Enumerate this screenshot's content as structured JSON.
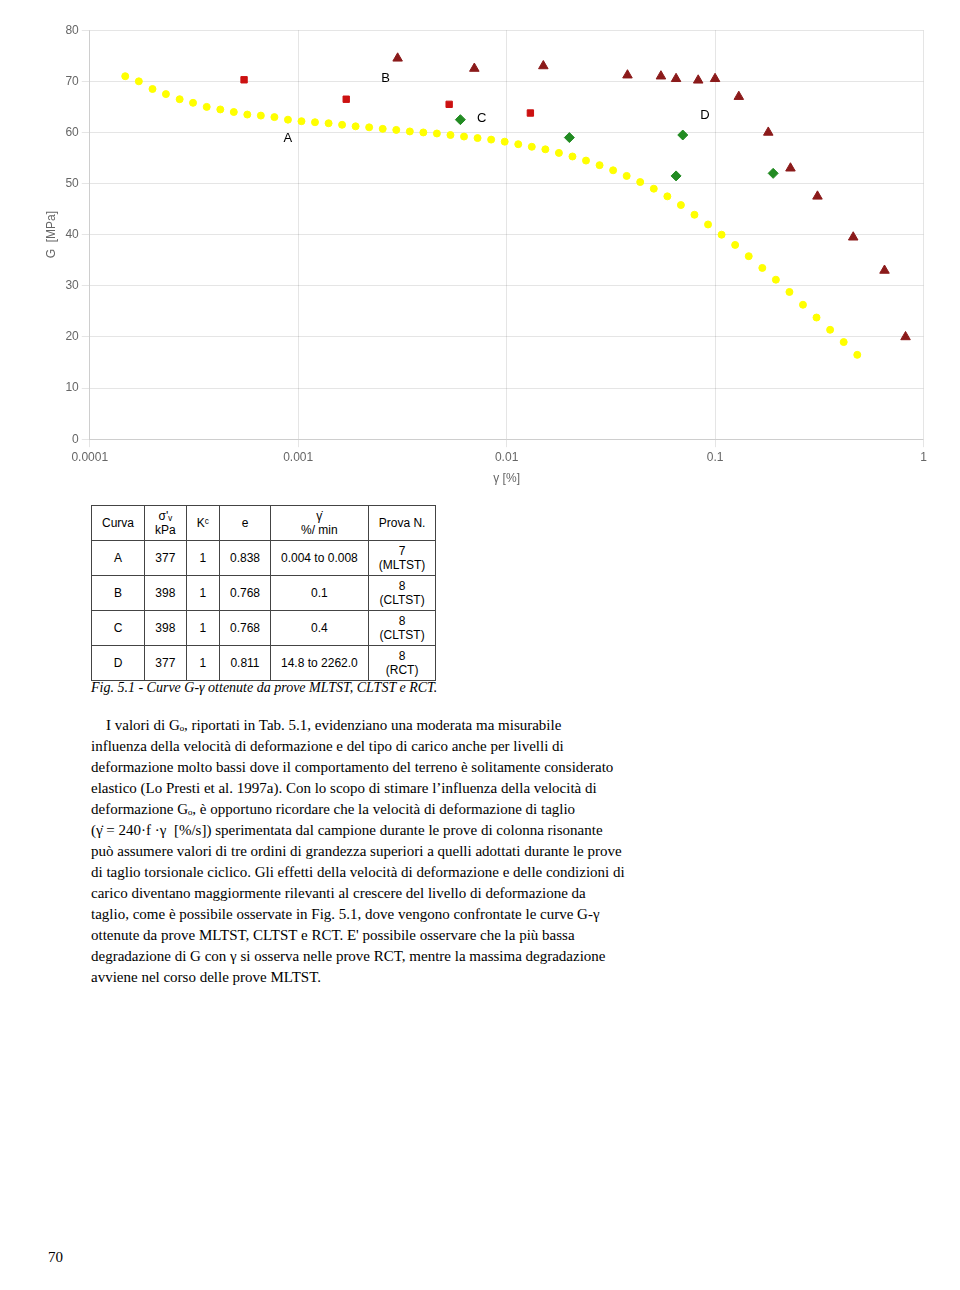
{
  "chart_data": {
    "type": "scatter",
    "log": "x",
    "grid": true,
    "xlabel": "γ [%]",
    "ylabel": "G  [MPa]",
    "xlim": [
      0.0001,
      1
    ],
    "ylim": [
      0,
      80
    ],
    "xticks": [
      0.0001,
      0.001,
      0.01,
      0.1,
      1
    ],
    "yticks": [
      0,
      10,
      20,
      30,
      40,
      50,
      60,
      70,
      80
    ],
    "series": [
      {
        "color": "#ffff00",
        "marker": "circle",
        "x": [
          0.000148,
          0.000172,
          0.0002,
          0.000232,
          0.00027,
          0.000313,
          0.000364,
          0.000423,
          0.000491,
          0.00057,
          0.000662,
          0.000769,
          0.000893,
          0.001037,
          0.001204,
          0.001399,
          0.001624,
          0.001886,
          0.00219,
          0.002544,
          0.002955,
          0.003432,
          0.003985,
          0.004629,
          0.005377,
          0.006246,
          0.007255,
          0.008428,
          0.009789,
          0.01137,
          0.013206,
          0.015339,
          0.017817,
          0.020694,
          0.024035,
          0.027921,
          0.032428,
          0.037665,
          0.043745,
          0.050821,
          0.059037,
          0.068579,
          0.079663,
          0.092533,
          0.107479,
          0.124846,
          0.145043,
          0.168538,
          0.195798,
          0.227426,
          0.264082,
          0.306727,
          0.356461,
          0.414121,
          0.48114
        ],
        "values": [
          71.0,
          70.0,
          68.5,
          67.5,
          66.5,
          65.8,
          65.0,
          64.5,
          64.0,
          63.5,
          63.3,
          63.0,
          62.5,
          62.2,
          62.0,
          61.8,
          61.5,
          61.2,
          61.0,
          60.7,
          60.5,
          60.2,
          60.0,
          59.8,
          59.5,
          59.2,
          58.9,
          58.6,
          58.2,
          57.7,
          57.2,
          56.7,
          56.0,
          55.3,
          54.5,
          53.6,
          52.6,
          51.5,
          50.3,
          49.0,
          47.5,
          45.8,
          43.9,
          42.0,
          40.0,
          38.0,
          35.8,
          33.5,
          31.2,
          28.8,
          26.3,
          23.8,
          21.4,
          19.0,
          16.5
        ]
      },
      {
        "color": "#cc1111",
        "marker": "square",
        "x": [
          0.00055,
          0.0017,
          0.0053,
          0.013
        ],
        "values": [
          70.3,
          66.5,
          65.5,
          63.8
        ]
      },
      {
        "color": "#228B22",
        "marker": "diamond",
        "x": [
          0.006,
          0.02,
          0.065
        ],
        "values": [
          62.5,
          59.0,
          51.5
        ]
      },
      {
        "color": "#228B22",
        "marker": "diamond",
        "x": [
          0.07,
          0.19
        ],
        "values": [
          59.5,
          52.0
        ]
      },
      {
        "color": "#8B1A1A",
        "marker": "triangle",
        "x": [
          0.003,
          0.007,
          0.015,
          0.038,
          0.055,
          0.065,
          0.083,
          0.1,
          0.13,
          0.18,
          0.23,
          0.31,
          0.46,
          0.65,
          0.82
        ],
        "values": [
          74.5,
          72.5,
          73.0,
          71.2,
          71.0,
          70.5,
          70.2,
          70.5,
          67.0,
          60.0,
          53.0,
          47.5,
          39.5,
          33.0,
          20.0
        ]
      }
    ],
    "annotations": [
      {
        "text": "A",
        "x": 0.00085,
        "y": 57.5
      },
      {
        "text": "B",
        "x": 0.0025,
        "y": 69.2
      },
      {
        "text": "C",
        "x": 0.0072,
        "y": 61.5
      },
      {
        "text": "D",
        "x": 0.085,
        "y": 62.0
      }
    ]
  },
  "table": {
    "columns": [
      "Curva",
      "σ'ᵥ\nkPa",
      "Kᶜ",
      "e",
      "γ̇\n%/ min",
      "Prova N."
    ],
    "rows": [
      [
        "A",
        "377",
        "1",
        "0.838",
        "0.004 to 0.008",
        "7\n(MLTST)"
      ],
      [
        "B",
        "398",
        "1",
        "0.768",
        "0.1",
        "8\n(CLTST)"
      ],
      [
        "C",
        "398",
        "1",
        "0.768",
        "0.4",
        "8\n(CLTST)"
      ],
      [
        "D",
        "377",
        "1",
        "0.811",
        "14.8 to 2262.0",
        "8\n(RCT)"
      ]
    ]
  },
  "caption": "Fig. 5.1 - Curve G-γ ottenute da prove MLTST, CLTST e RCT.",
  "text_lines": [
    "    I valori di Gₒ, riportati in Tab. 5.1, evidenziano una moderata ma misurabile",
    "influenza della velocità di deformazione e del tipo di carico anche per livelli di",
    "deformazione molto bassi dove il comportamento del terreno è solitamente considerato",
    "elastico (Lo Presti et al. 1997a). Con lo scopo di stimare l’influenza della velocità di",
    "deformazione Gₒ, è opportuno ricordare che la velocità di deformazione di taglio",
    "(γ̇ = 240·f ·γ  [%/s]) sperimentata dal campione durante le prove di colonna risonante",
    "può assumere valori di tre ordini di grandezza superiori a quelli adottati durante le prove",
    "di taglio torsionale ciclico. Gli effetti della velocità di deformazione e delle condizioni di",
    "carico diventano maggiormente rilevanti al crescere del livello di deformazione da",
    "taglio, come è possibile osservate in Fig. 5.1, dove vengono confrontate le curve G-γ",
    "ottenute da prove MLTST, CLTST e RCT. E' possibile osservare che la più bassa",
    "degradazione di G con γ si osserva nelle prove RCT, mentre la massima degradazione",
    "avviene nel corso delle prove MLTST."
  ],
  "page_number": "70"
}
